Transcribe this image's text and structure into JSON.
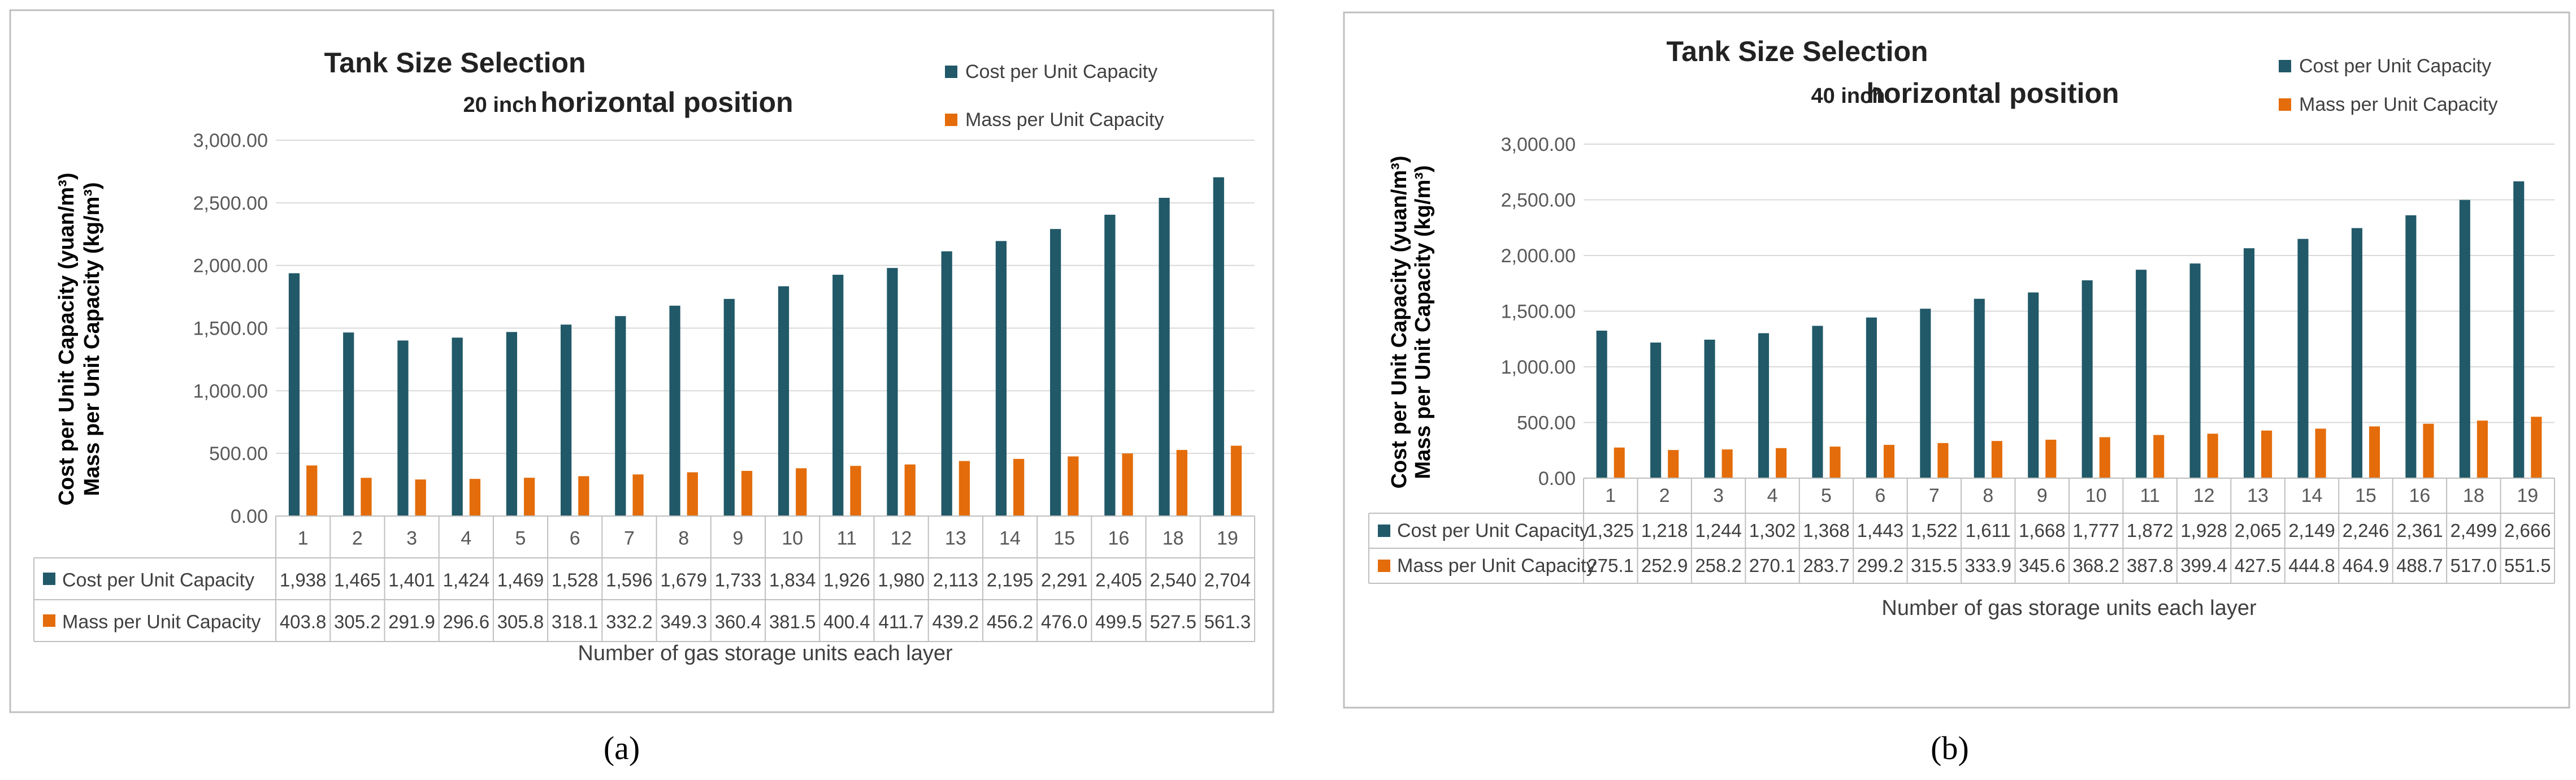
{
  "panels": [
    {
      "caption": "(a)",
      "chart_data": {
        "type": "bar",
        "title": "Tank Size Selection",
        "subtitle_size": "20 inch",
        "subtitle_position": "horizontal position",
        "ylabel_line1": "Cost per Unit Capacity  (yuan/m³)",
        "ylabel_line2": "Mass per Unit Capacity  (kg/m³)",
        "xlabel": "Number of gas storage units each layer",
        "ylim": [
          0,
          3000
        ],
        "yticks": [
          "0.00",
          "500.00",
          "1,000.00",
          "1,500.00",
          "2,000.00",
          "2,500.00",
          "3,000.00"
        ],
        "categories": [
          "1",
          "2",
          "3",
          "4",
          "5",
          "6",
          "7",
          "8",
          "9",
          "10",
          "11",
          "12",
          "13",
          "14",
          "15",
          "16",
          "18",
          "19"
        ],
        "series": [
          {
            "name": "Cost per Unit Capacity",
            "color": "#215968",
            "values": [
              1938,
              1465,
              1401,
              1424,
              1469,
              1528,
              1596,
              1679,
              1733,
              1834,
              1926,
              1980,
              2113,
              2195,
              2291,
              2405,
              2540,
              2704
            ],
            "labels": [
              "1,938",
              "1,465",
              "1,401",
              "1,424",
              "1,469",
              "1,528",
              "1,596",
              "1,679",
              "1,733",
              "1,834",
              "1,926",
              "1,980",
              "2,113",
              "2,195",
              "2,291",
              "2,405",
              "2,540",
              "2,704"
            ]
          },
          {
            "name": "Mass per Unit Capacity",
            "color": "#E46C0A",
            "values": [
              403.8,
              305.2,
              291.9,
              296.6,
              305.8,
              318.1,
              332.2,
              349.3,
              360.4,
              381.5,
              400.4,
              411.7,
              439.2,
              456.2,
              476.0,
              499.5,
              527.5,
              561.3
            ],
            "labels": [
              "403.8",
              "305.2",
              "291.9",
              "296.6",
              "305.8",
              "318.1",
              "332.2",
              "349.3",
              "360.4",
              "381.5",
              "400.4",
              "411.7",
              "439.2",
              "456.2",
              "476.0",
              "499.5",
              "527.5",
              "561.3"
            ]
          }
        ]
      }
    },
    {
      "caption": "(b)",
      "chart_data": {
        "type": "bar",
        "title": "Tank Size Selection",
        "subtitle_size": "40 inch",
        "subtitle_position": "horizontal position",
        "ylabel_line1": "Cost per Unit Capacity  (yuan/m³)",
        "ylabel_line2": "Mass per Unit Capacity  (kg/m³)",
        "xlabel": "Number of gas storage units each layer",
        "ylim": [
          0,
          3000
        ],
        "yticks": [
          "0.00",
          "500.00",
          "1,000.00",
          "1,500.00",
          "2,000.00",
          "2,500.00",
          "3,000.00"
        ],
        "categories": [
          "1",
          "2",
          "3",
          "4",
          "5",
          "6",
          "7",
          "8",
          "9",
          "10",
          "11",
          "12",
          "13",
          "14",
          "15",
          "16",
          "18",
          "19"
        ],
        "series": [
          {
            "name": "Cost per Unit Capacity",
            "color": "#215968",
            "values": [
              1325,
              1218,
              1244,
              1302,
              1368,
              1443,
              1522,
              1611,
              1668,
              1777,
              1872,
              1928,
              2065,
              2149,
              2246,
              2361,
              2499,
              2666
            ],
            "labels": [
              "1,325",
              "1,218",
              "1,244",
              "1,302",
              "1,368",
              "1,443",
              "1,522",
              "1,611",
              "1,668",
              "1,777",
              "1,872",
              "1,928",
              "2,065",
              "2,149",
              "2,246",
              "2,361",
              "2,499",
              "2,666"
            ]
          },
          {
            "name": "Mass per Unit Capacity",
            "color": "#E46C0A",
            "values": [
              275.1,
              252.9,
              258.2,
              270.1,
              283.7,
              299.2,
              315.5,
              333.9,
              345.6,
              368.2,
              387.8,
              399.4,
              427.5,
              444.8,
              464.9,
              488.7,
              517.0,
              551.5
            ],
            "labels": [
              "275.1",
              "252.9",
              "258.2",
              "270.1",
              "283.7",
              "299.2",
              "315.5",
              "333.9",
              "345.6",
              "368.2",
              "387.8",
              "399.4",
              "427.5",
              "444.8",
              "464.9",
              "488.7",
              "517.0",
              "551.5"
            ]
          }
        ]
      }
    }
  ]
}
